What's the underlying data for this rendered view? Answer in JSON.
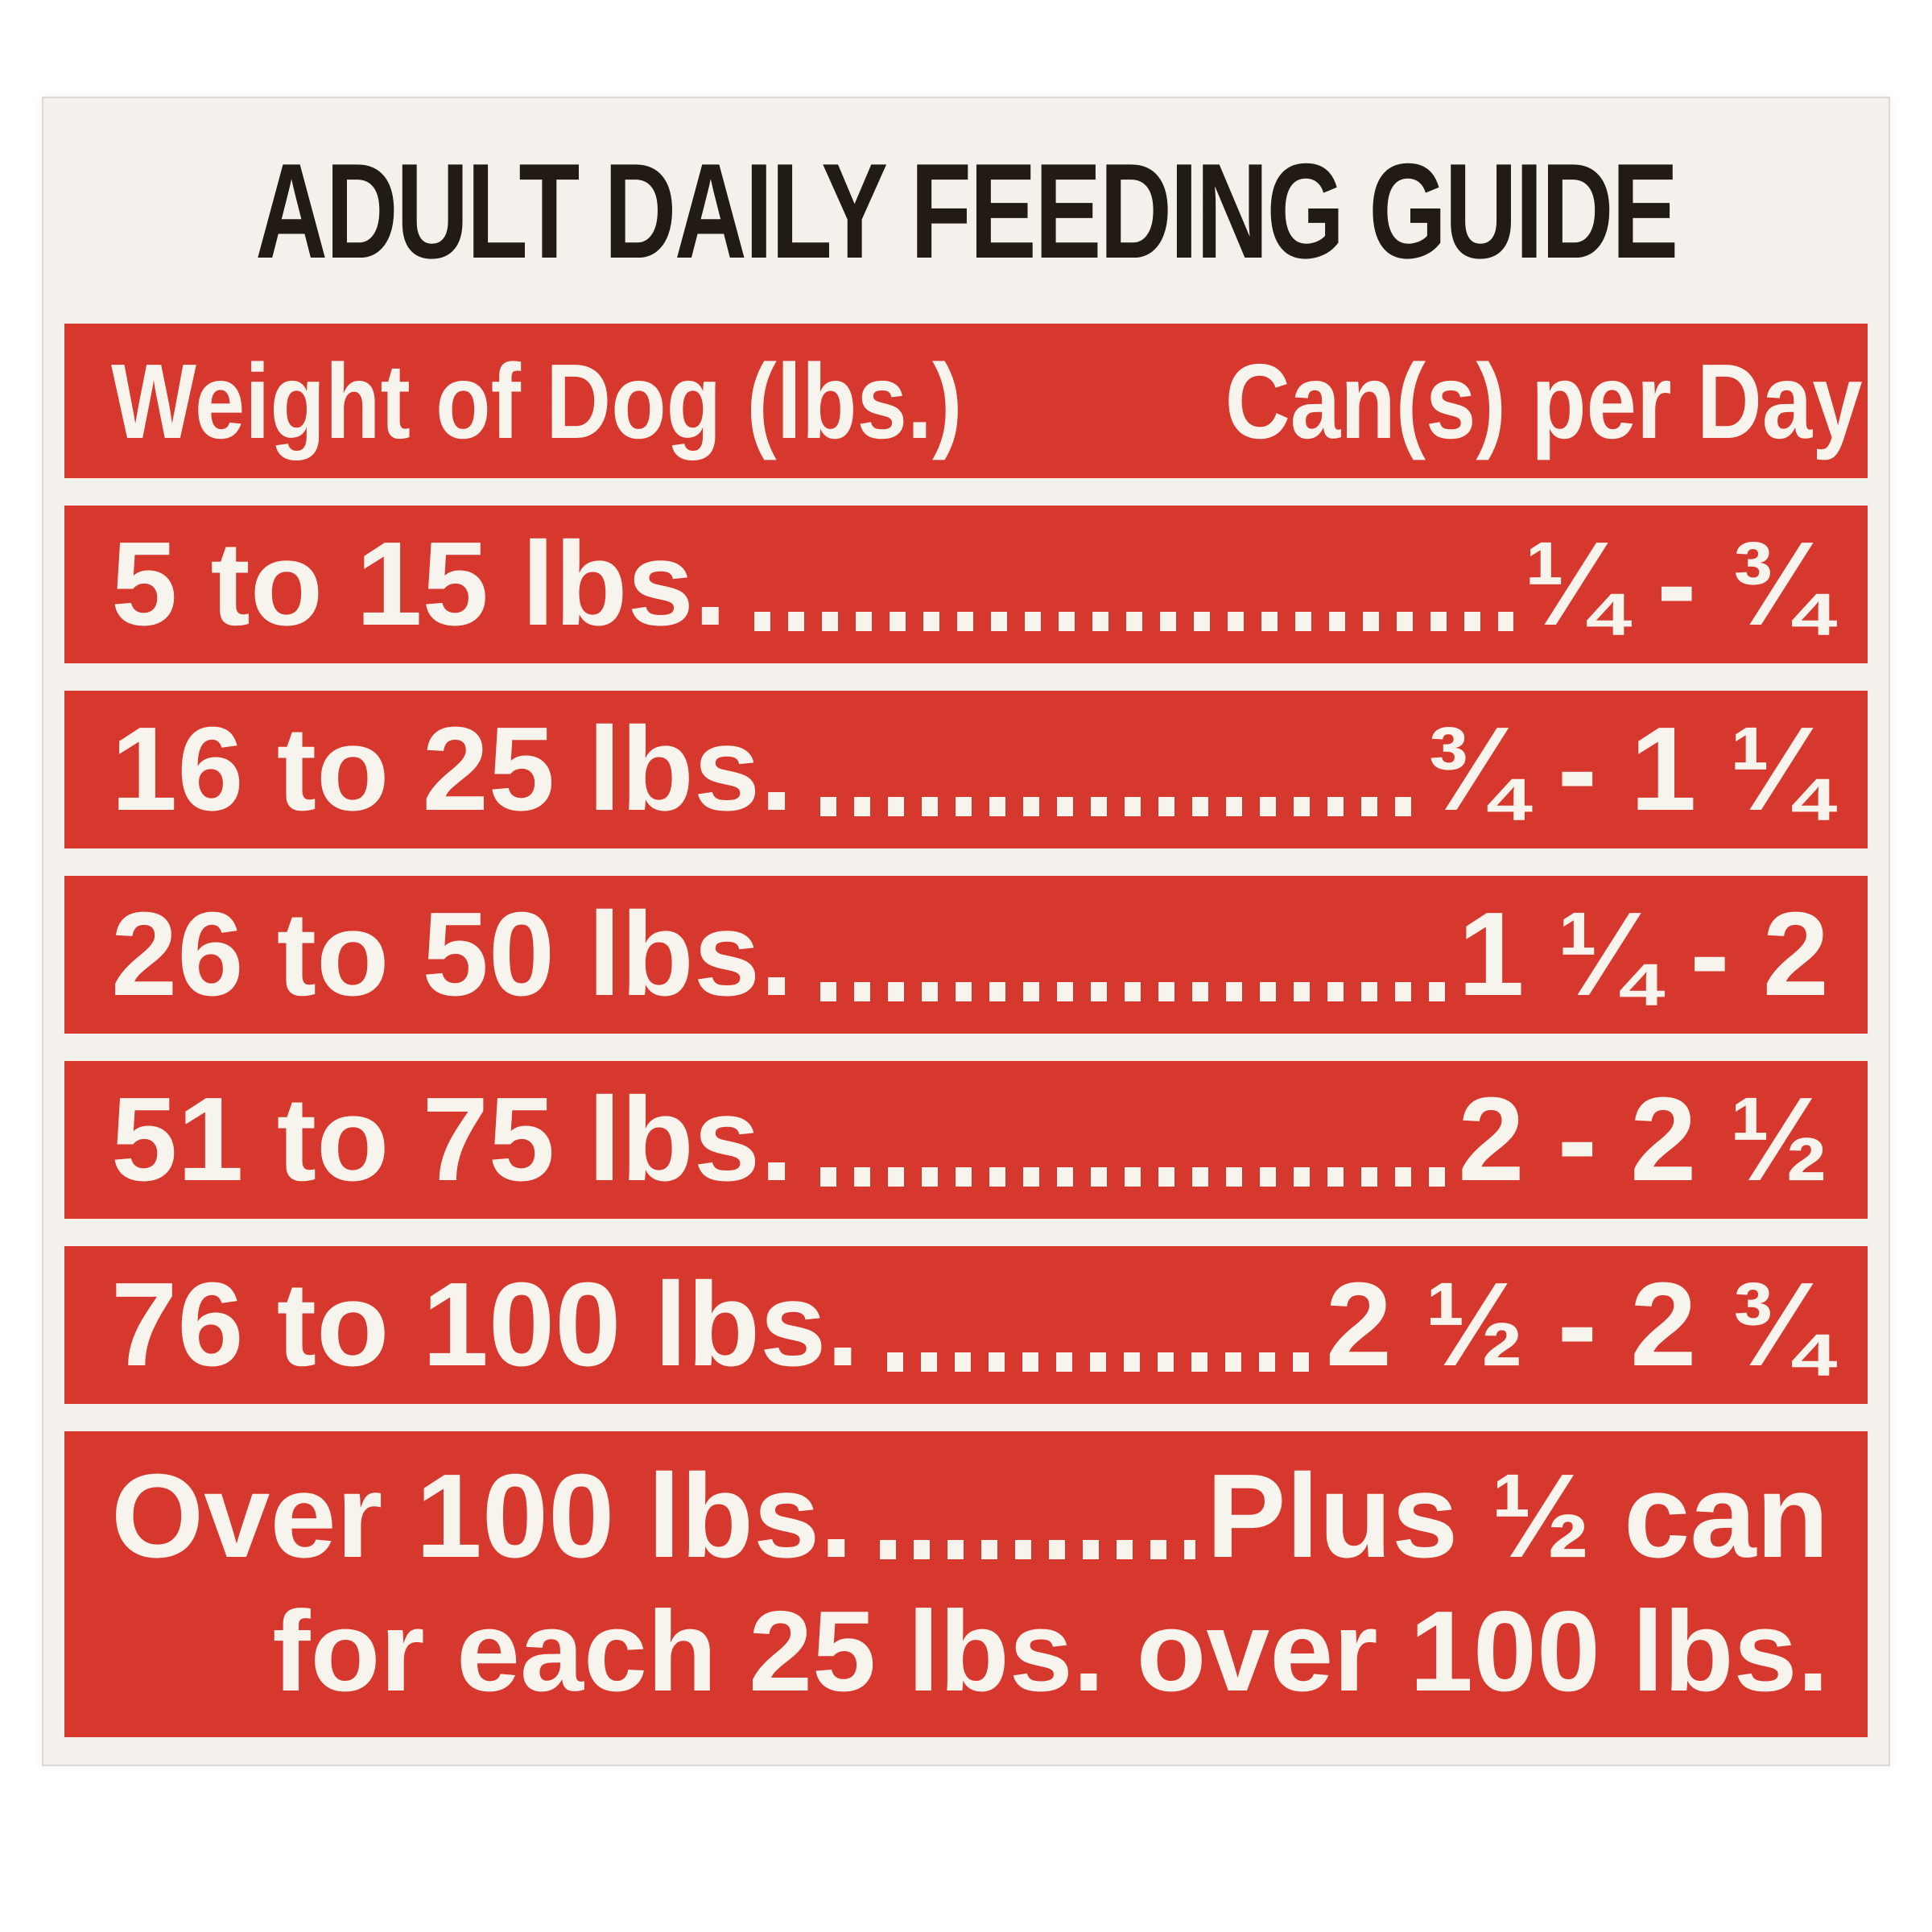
{
  "label": {
    "title": "ADULT DAILY FEEDING GUIDE",
    "colors": {
      "band_red": "#d7382d",
      "label_bg": "#f4f1ec",
      "title_color": "#221b13",
      "band_text": "#f7f4ee"
    },
    "table": {
      "columns": {
        "weight": "Weight of Dog (lbs.)",
        "cans": "Can(s) per Day"
      },
      "rows": [
        {
          "weight": "5 to 15 lbs.",
          "cans": "¼ - ¾"
        },
        {
          "weight": "16 to 25 lbs.",
          "cans": "¾ - 1 ¼"
        },
        {
          "weight": "26 to 50 lbs.",
          "cans": "1 ¼ - 2"
        },
        {
          "weight": "51 to 75 lbs.",
          "cans": "2 - 2 ½"
        },
        {
          "weight": "76 to 100 lbs.",
          "cans": "2 ½ - 2 ¾"
        },
        {
          "weight": "Over 100 lbs.",
          "cans": "Plus ½ can",
          "note": "for each 25 lbs. over 100 lbs."
        }
      ]
    }
  }
}
